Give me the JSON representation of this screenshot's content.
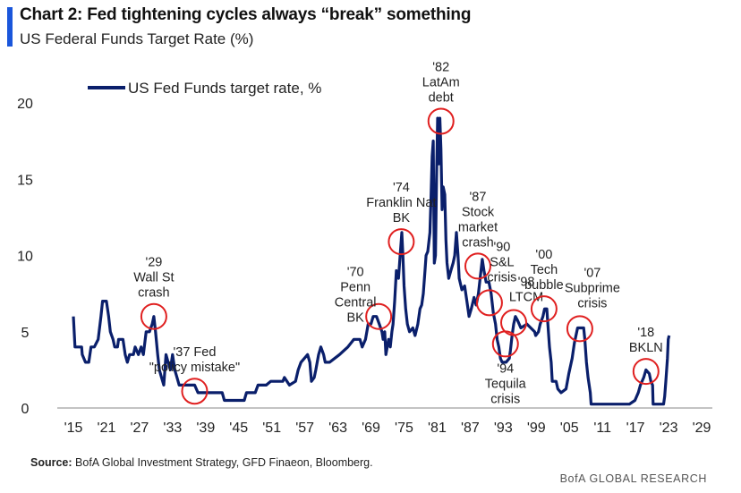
{
  "header": {
    "title": "Chart 2: Fed tightening cycles always “break” something",
    "subtitle": "US Federal Funds Target Rate (%)"
  },
  "footer": {
    "source_label": "Source:",
    "source_text": "BofA Global Investment Strategy, GFD Finaeon, Bloomberg.",
    "brand": "BofA GLOBAL RESEARCH"
  },
  "colors": {
    "line": "#0a1f6b",
    "accent": "#1a56db",
    "circle": "#e02020"
  },
  "chart_data": {
    "type": "line",
    "legend": {
      "label": "US Fed Funds target rate, %",
      "placement": "top-left"
    },
    "xlim": [
      1915,
      2029
    ],
    "ylim": [
      0,
      20
    ],
    "xticks": [
      {
        "v": 1915,
        "label": "'15"
      },
      {
        "v": 1921,
        "label": "'21"
      },
      {
        "v": 1927,
        "label": "'27"
      },
      {
        "v": 1933,
        "label": "'33"
      },
      {
        "v": 1939,
        "label": "'39"
      },
      {
        "v": 1945,
        "label": "'45"
      },
      {
        "v": 1951,
        "label": "'51"
      },
      {
        "v": 1957,
        "label": "'57"
      },
      {
        "v": 1963,
        "label": "'63"
      },
      {
        "v": 1969,
        "label": "'69"
      },
      {
        "v": 1975,
        "label": "'75"
      },
      {
        "v": 1981,
        "label": "'81"
      },
      {
        "v": 1987,
        "label": "'87"
      },
      {
        "v": 1993,
        "label": "'93"
      },
      {
        "v": 1999,
        "label": "'99"
      },
      {
        "v": 2005,
        "label": "'05"
      },
      {
        "v": 2011,
        "label": "'11"
      },
      {
        "v": 2017,
        "label": "'17"
      },
      {
        "v": 2023,
        "label": "'23"
      },
      {
        "v": 2029,
        "label": "'29"
      }
    ],
    "yticks": [
      {
        "v": 0,
        "label": "0"
      },
      {
        "v": 5,
        "label": "5"
      },
      {
        "v": 10,
        "label": "10"
      },
      {
        "v": 15,
        "label": "15"
      },
      {
        "v": 20,
        "label": "20"
      }
    ],
    "series": [
      {
        "name": "US Fed Funds target rate, %",
        "points": [
          [
            1915.0,
            6.0
          ],
          [
            1915.3,
            4.0
          ],
          [
            1916.5,
            4.0
          ],
          [
            1916.6,
            3.5
          ],
          [
            1917.2,
            3.0
          ],
          [
            1917.8,
            3.0
          ],
          [
            1918.2,
            4.0
          ],
          [
            1918.8,
            4.0
          ],
          [
            1919.5,
            4.5
          ],
          [
            1920.0,
            6.0
          ],
          [
            1920.3,
            7.0
          ],
          [
            1921.0,
            7.0
          ],
          [
            1921.4,
            6.0
          ],
          [
            1921.7,
            5.0
          ],
          [
            1922.2,
            4.5
          ],
          [
            1922.5,
            4.0
          ],
          [
            1923.0,
            4.0
          ],
          [
            1923.2,
            4.5
          ],
          [
            1924.0,
            4.5
          ],
          [
            1924.4,
            3.5
          ],
          [
            1924.8,
            3.0
          ],
          [
            1925.2,
            3.5
          ],
          [
            1925.9,
            3.5
          ],
          [
            1926.2,
            4.0
          ],
          [
            1926.8,
            3.5
          ],
          [
            1927.3,
            4.0
          ],
          [
            1927.7,
            3.5
          ],
          [
            1928.2,
            5.0
          ],
          [
            1928.8,
            5.0
          ],
          [
            1929.3,
            5.5
          ],
          [
            1929.6,
            6.0
          ],
          [
            1929.9,
            5.0
          ],
          [
            1930.3,
            3.5
          ],
          [
            1930.6,
            2.5
          ],
          [
            1931.0,
            2.0
          ],
          [
            1931.4,
            1.5
          ],
          [
            1931.8,
            3.5
          ],
          [
            1932.2,
            3.0
          ],
          [
            1932.6,
            2.5
          ],
          [
            1933.0,
            3.5
          ],
          [
            1933.4,
            2.5
          ],
          [
            1933.8,
            2.0
          ],
          [
            1934.2,
            1.5
          ],
          [
            1935.0,
            1.5
          ],
          [
            1937.0,
            1.5
          ],
          [
            1937.6,
            1.0
          ],
          [
            1940.0,
            1.0
          ],
          [
            1942.0,
            1.0
          ],
          [
            1942.4,
            0.5
          ],
          [
            1946.0,
            0.5
          ],
          [
            1946.4,
            1.0
          ],
          [
            1948.0,
            1.0
          ],
          [
            1948.5,
            1.5
          ],
          [
            1950.0,
            1.5
          ],
          [
            1950.8,
            1.75
          ],
          [
            1953.0,
            1.75
          ],
          [
            1953.3,
            2.0
          ],
          [
            1954.2,
            1.5
          ],
          [
            1955.3,
            1.75
          ],
          [
            1955.8,
            2.5
          ],
          [
            1956.3,
            3.0
          ],
          [
            1957.5,
            3.5
          ],
          [
            1957.9,
            3.0
          ],
          [
            1958.2,
            1.75
          ],
          [
            1958.7,
            2.0
          ],
          [
            1959.0,
            2.5
          ],
          [
            1959.5,
            3.5
          ],
          [
            1959.9,
            4.0
          ],
          [
            1960.4,
            3.5
          ],
          [
            1960.7,
            3.0
          ],
          [
            1961.5,
            3.0
          ],
          [
            1963.3,
            3.5
          ],
          [
            1964.8,
            4.0
          ],
          [
            1965.9,
            4.5
          ],
          [
            1967.0,
            4.5
          ],
          [
            1967.4,
            4.0
          ],
          [
            1968.0,
            4.5
          ],
          [
            1968.5,
            5.5
          ],
          [
            1969.0,
            5.5
          ],
          [
            1969.4,
            6.0
          ],
          [
            1970.0,
            6.0
          ],
          [
            1970.5,
            5.5
          ],
          [
            1971.0,
            5.0
          ],
          [
            1971.2,
            4.5
          ],
          [
            1971.5,
            5.0
          ],
          [
            1971.7,
            3.5
          ],
          [
            1972.2,
            4.5
          ],
          [
            1972.5,
            4.0
          ],
          [
            1972.8,
            5.0
          ],
          [
            1973.0,
            5.5
          ],
          [
            1973.3,
            7.0
          ],
          [
            1973.6,
            9.0
          ],
          [
            1974.0,
            8.5
          ],
          [
            1974.2,
            9.5
          ],
          [
            1974.6,
            11.5
          ],
          [
            1974.8,
            10.0
          ],
          [
            1975.0,
            8.0
          ],
          [
            1975.3,
            6.5
          ],
          [
            1975.6,
            5.5
          ],
          [
            1976.0,
            5.0
          ],
          [
            1976.6,
            5.25
          ],
          [
            1977.0,
            4.75
          ],
          [
            1977.5,
            5.5
          ],
          [
            1977.9,
            6.5
          ],
          [
            1978.2,
            6.75
          ],
          [
            1978.5,
            7.5
          ],
          [
            1978.8,
            9.0
          ],
          [
            1979.0,
            10.0
          ],
          [
            1979.3,
            10.25
          ],
          [
            1979.7,
            11.5
          ],
          [
            1979.9,
            13.75
          ],
          [
            1980.1,
            16.5
          ],
          [
            1980.3,
            17.5
          ],
          [
            1980.5,
            9.5
          ],
          [
            1980.7,
            10.0
          ],
          [
            1980.9,
            15.0
          ],
          [
            1981.1,
            19.0
          ],
          [
            1981.3,
            16.0
          ],
          [
            1981.5,
            19.0
          ],
          [
            1981.7,
            17.0
          ],
          [
            1981.9,
            13.0
          ],
          [
            1982.1,
            14.5
          ],
          [
            1982.4,
            14.0
          ],
          [
            1982.6,
            11.0
          ],
          [
            1982.8,
            9.5
          ],
          [
            1983.1,
            8.5
          ],
          [
            1983.5,
            9.0
          ],
          [
            1983.9,
            9.5
          ],
          [
            1984.2,
            10.0
          ],
          [
            1984.5,
            11.5
          ],
          [
            1984.8,
            10.0
          ],
          [
            1985.0,
            8.5
          ],
          [
            1985.5,
            7.75
          ],
          [
            1986.0,
            8.0
          ],
          [
            1986.4,
            7.0
          ],
          [
            1986.8,
            6.0
          ],
          [
            1987.2,
            6.5
          ],
          [
            1987.7,
            7.25
          ],
          [
            1988.1,
            6.75
          ],
          [
            1988.5,
            7.5
          ],
          [
            1988.8,
            8.5
          ],
          [
            1989.2,
            9.75
          ],
          [
            1989.5,
            9.0
          ],
          [
            1989.9,
            8.25
          ],
          [
            1990.4,
            8.25
          ],
          [
            1990.8,
            7.5
          ],
          [
            1991.2,
            6.25
          ],
          [
            1991.6,
            5.5
          ],
          [
            1991.9,
            4.5
          ],
          [
            1992.2,
            4.0
          ],
          [
            1992.5,
            3.25
          ],
          [
            1992.8,
            3.0
          ],
          [
            1993.5,
            3.0
          ],
          [
            1994.1,
            3.25
          ],
          [
            1994.3,
            3.75
          ],
          [
            1994.6,
            4.75
          ],
          [
            1994.9,
            5.5
          ],
          [
            1995.2,
            6.0
          ],
          [
            1995.6,
            5.75
          ],
          [
            1996.2,
            5.25
          ],
          [
            1997.3,
            5.5
          ],
          [
            1998.7,
            5.0
          ],
          [
            1998.9,
            4.75
          ],
          [
            1999.4,
            5.0
          ],
          [
            1999.7,
            5.5
          ],
          [
            2000.2,
            6.0
          ],
          [
            2000.5,
            6.5
          ],
          [
            2000.9,
            6.5
          ],
          [
            2001.1,
            5.5
          ],
          [
            2001.4,
            4.0
          ],
          [
            2001.7,
            3.0
          ],
          [
            2001.9,
            1.75
          ],
          [
            2002.6,
            1.75
          ],
          [
            2002.9,
            1.25
          ],
          [
            2003.5,
            1.0
          ],
          [
            2004.4,
            1.25
          ],
          [
            2004.9,
            2.25
          ],
          [
            2005.5,
            3.25
          ],
          [
            2005.9,
            4.25
          ],
          [
            2006.5,
            5.25
          ],
          [
            2007.6,
            5.25
          ],
          [
            2007.8,
            4.5
          ],
          [
            2008.1,
            3.0
          ],
          [
            2008.4,
            2.0
          ],
          [
            2008.8,
            1.0
          ],
          [
            2008.95,
            0.25
          ],
          [
            2015.9,
            0.25
          ],
          [
            2016.9,
            0.5
          ],
          [
            2017.5,
            1.0
          ],
          [
            2017.9,
            1.5
          ],
          [
            2018.5,
            2.0
          ],
          [
            2018.9,
            2.5
          ],
          [
            2019.5,
            2.25
          ],
          [
            2019.8,
            1.75
          ],
          [
            2020.1,
            1.5
          ],
          [
            2020.2,
            0.25
          ],
          [
            2022.1,
            0.25
          ],
          [
            2022.3,
            0.75
          ],
          [
            2022.5,
            1.75
          ],
          [
            2022.8,
            3.25
          ],
          [
            2022.95,
            4.5
          ],
          [
            2023.1,
            4.75
          ]
        ]
      }
    ],
    "annotations": [
      {
        "text": "'29\nWall St\ncrash",
        "x": 1929.6,
        "y": 6.0,
        "anchor": "above"
      },
      {
        "text": "'37 Fed\n\"policy mistake\"",
        "x": 1937.0,
        "y": 1.1,
        "anchor": "above"
      },
      {
        "text": "'70\nPenn\nCentral\nBK",
        "x": 1970.4,
        "y": 6.0,
        "anchor": "left"
      },
      {
        "text": "'74\nFranklin Nat\nBK",
        "x": 1974.5,
        "y": 10.9,
        "anchor": "above"
      },
      {
        "text": "'82\nLatAm\ndebt",
        "x": 1981.7,
        "y": 18.8,
        "anchor": "above"
      },
      {
        "text": "'87\nStock\nmarket\ncrash",
        "x": 1988.4,
        "y": 9.3,
        "anchor": "above"
      },
      {
        "text": "'90\nS&L\ncrisis",
        "x": 1990.5,
        "y": 6.9,
        "anchor": "above-right"
      },
      {
        "text": "'94\nTequila\ncrisis",
        "x": 1993.4,
        "y": 4.2,
        "anchor": "below"
      },
      {
        "text": "'98\nLTCM",
        "x": 1994.9,
        "y": 5.6,
        "anchor": "above-right"
      },
      {
        "text": "'00\nTech\nbubble",
        "x": 2000.4,
        "y": 6.5,
        "anchor": "above"
      },
      {
        "text": "'07\nSubprime\ncrisis",
        "x": 2006.9,
        "y": 5.2,
        "anchor": "above-right"
      },
      {
        "text": "'18\nBKLN",
        "x": 2018.9,
        "y": 2.4,
        "anchor": "above"
      }
    ],
    "grid": false
  }
}
